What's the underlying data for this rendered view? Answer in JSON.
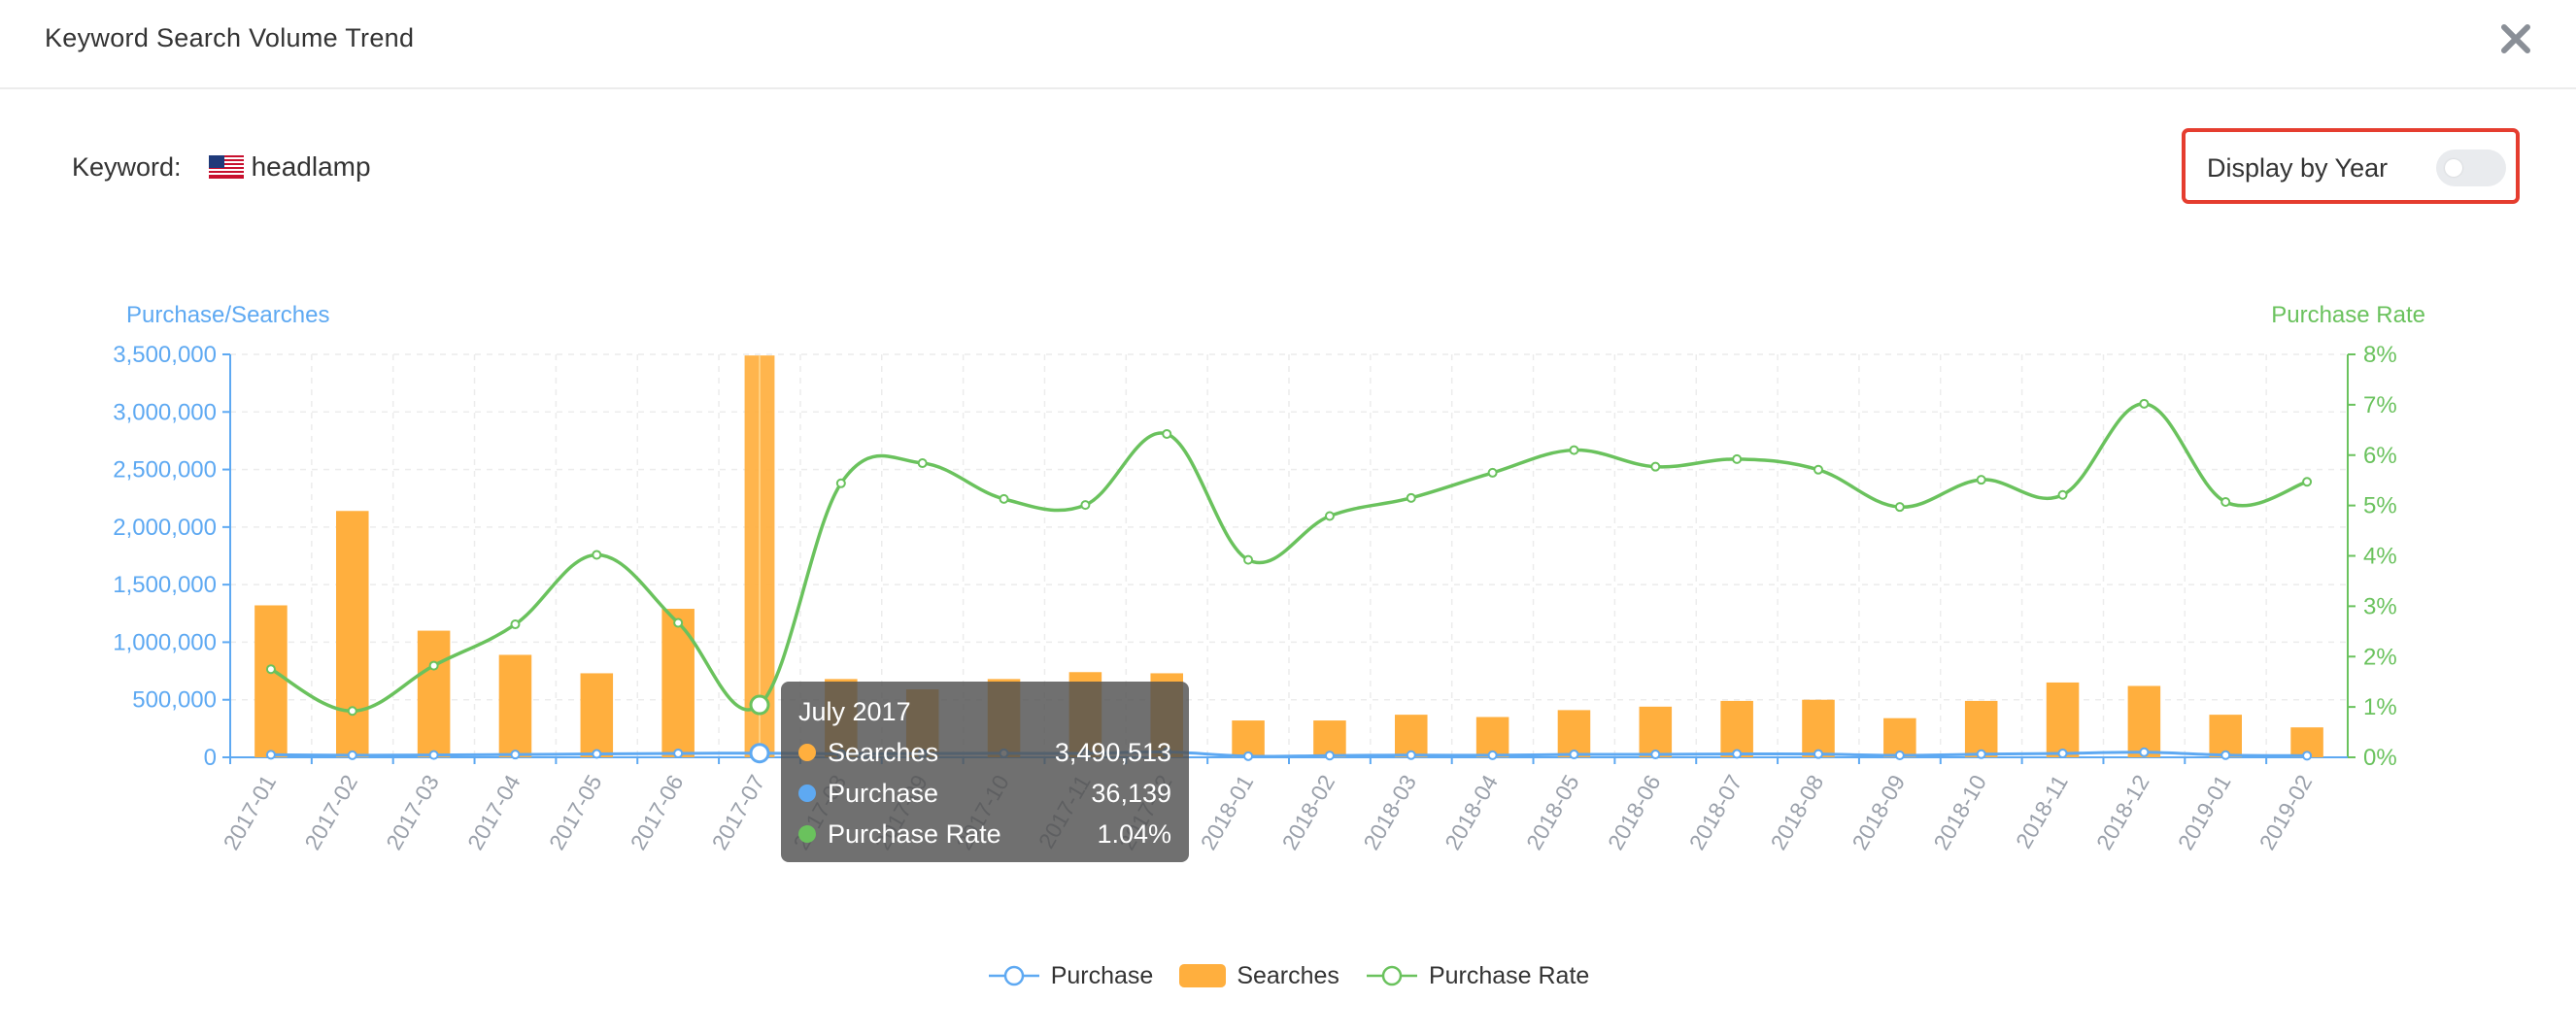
{
  "dialog": {
    "title": "Keyword Search Volume Trend"
  },
  "keyword": {
    "label": "Keyword:",
    "value": "headlamp",
    "flag_icon": "us-flag-icon"
  },
  "toggle": {
    "label": "Display by Year",
    "on": false
  },
  "tooltip": {
    "title": "July 2017",
    "rows": [
      {
        "label": "Searches",
        "value": "3,490,513",
        "color": "#ffaf3e"
      },
      {
        "label": "Purchase",
        "value": "36,139",
        "color": "#5ea9f2"
      },
      {
        "label": "Purchase Rate",
        "value": "1.04%",
        "color": "#6ac25d"
      }
    ]
  },
  "legend": [
    {
      "label": "Purchase",
      "type": "line-marker",
      "color": "#5ea9f2"
    },
    {
      "label": "Searches",
      "type": "bar",
      "color": "#ffaf3e"
    },
    {
      "label": "Purchase Rate",
      "type": "line-marker",
      "color": "#6ac25d"
    }
  ],
  "colors": {
    "searches": "#ffaf3e",
    "purchase": "#5ea9f2",
    "rate": "#6ac25d",
    "highlight_border": "#e53d2f"
  },
  "chart_data": {
    "type": "bar",
    "categories": [
      "2017-01",
      "2017-02",
      "2017-03",
      "2017-04",
      "2017-05",
      "2017-06",
      "2017-07",
      "2017-08",
      "2017-09",
      "2017-10",
      "2017-11",
      "2017-12",
      "2018-01",
      "2018-02",
      "2018-03",
      "2018-04",
      "2018-05",
      "2018-06",
      "2018-07",
      "2018-08",
      "2018-09",
      "2018-10",
      "2018-11",
      "2018-12",
      "2019-01",
      "2019-02"
    ],
    "y_left": {
      "label": "Purchase/Searches",
      "min": 0,
      "max": 3500000,
      "ticks": [
        "0",
        "500,000",
        "1,000,000",
        "1,500,000",
        "2,000,000",
        "2,500,000",
        "3,000,000",
        "3,500,000"
      ]
    },
    "y_right": {
      "label": "Purchase Rate",
      "min": 0,
      "max": 8,
      "ticks": [
        "0%",
        "1%",
        "2%",
        "3%",
        "4%",
        "5%",
        "6%",
        "7%",
        "8%"
      ]
    },
    "grid": true,
    "highlighted_index": 6,
    "series": [
      {
        "name": "Searches",
        "type": "bar",
        "axis": "left",
        "values": [
          1320000,
          2140000,
          1100000,
          890000,
          730000,
          1290000,
          3490513,
          680000,
          590000,
          680000,
          740000,
          730000,
          320000,
          320000,
          370000,
          350000,
          410000,
          440000,
          490000,
          500000,
          340000,
          490000,
          650000,
          620000,
          370000,
          260000
        ]
      },
      {
        "name": "Purchase",
        "type": "line",
        "axis": "left",
        "values": [
          22000,
          18000,
          20000,
          24000,
          29000,
          34000,
          36139,
          31000,
          33000,
          35000,
          34000,
          46000,
          10000,
          15000,
          19000,
          18000,
          25000,
          25000,
          29000,
          28000,
          17000,
          27000,
          34000,
          44000,
          19000,
          14000
        ]
      },
      {
        "name": "Purchase Rate",
        "type": "line",
        "axis": "right",
        "values": [
          1.75,
          0.92,
          1.82,
          2.64,
          4.02,
          2.67,
          1.04,
          5.44,
          5.84,
          5.13,
          5.01,
          6.42,
          3.92,
          4.79,
          5.15,
          5.65,
          6.1,
          5.77,
          5.92,
          5.71,
          4.97,
          5.51,
          5.21,
          7.02,
          5.07,
          5.47
        ]
      }
    ]
  }
}
